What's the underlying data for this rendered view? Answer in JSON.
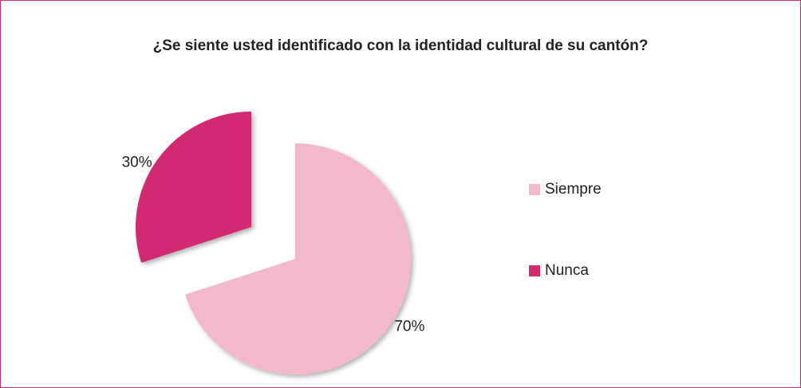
{
  "chart_data": {
    "type": "pie",
    "title": "¿Se siente usted identificado con la identidad cultural de su cantón?",
    "categories": [
      "Siempre",
      "Nunca"
    ],
    "values": [
      70,
      30
    ],
    "value_labels": [
      "70%",
      "30%"
    ],
    "colors": [
      "#f2b9cc",
      "#d12b72"
    ],
    "legend": "right"
  }
}
